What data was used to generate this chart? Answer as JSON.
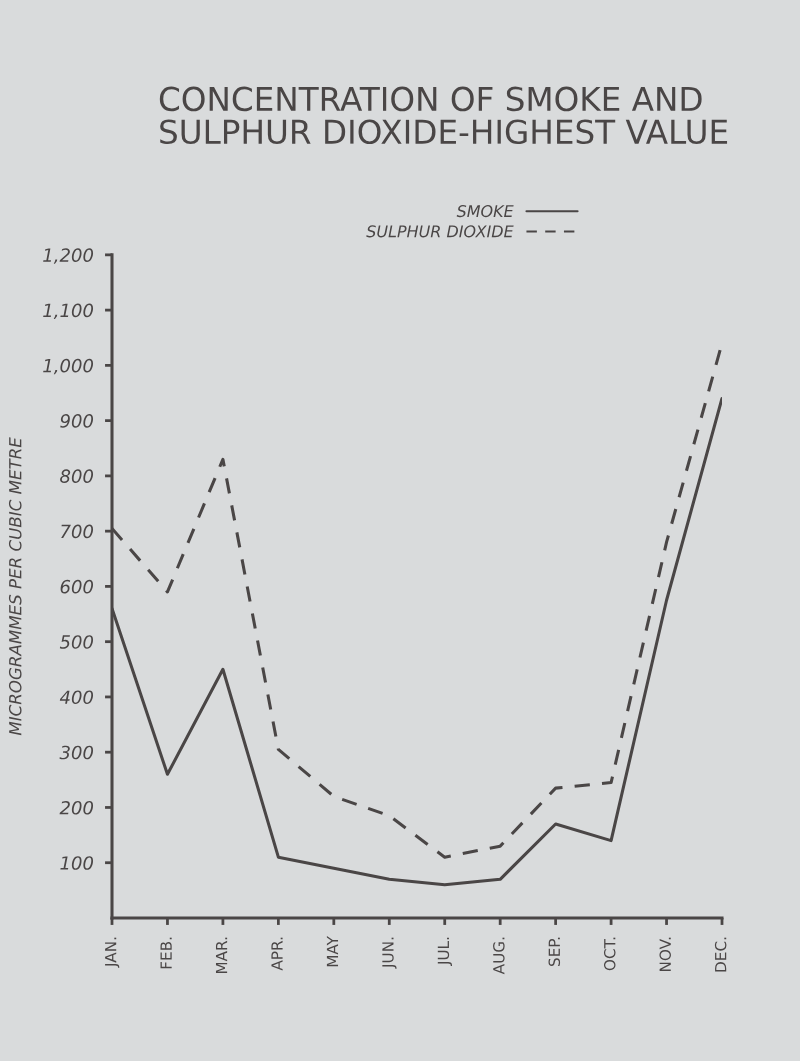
{
  "chart_data": {
    "type": "line",
    "title": "CONCENTRATION OF SMOKE AND\nSULPHUR DIOXIDE-HIGHEST VALUE",
    "ylabel": "MICROGRAMMES PER CUBIC METRE",
    "categories": [
      "JAN.",
      "FEB.",
      "MAR.",
      "APR.",
      "MAY",
      "JUN.",
      "JUL.",
      "AUG.",
      "SEP.",
      "OCT.",
      "NOV.",
      "DEC."
    ],
    "series": [
      {
        "name": "SMOKE",
        "color": "#4a4646",
        "line_style": "solid",
        "values": [
          560,
          260,
          450,
          110,
          90,
          70,
          60,
          70,
          170,
          140,
          575,
          940
        ]
      },
      {
        "name": "SULPHUR DIOXIDE",
        "color": "#4a4646",
        "line_style": "dashed",
        "values": [
          705,
          590,
          830,
          305,
          220,
          185,
          110,
          130,
          235,
          245,
          680,
          1040
        ]
      }
    ],
    "ylim": [
      0,
      1200
    ],
    "yticks": [
      100,
      200,
      300,
      400,
      500,
      600,
      700,
      800,
      900,
      {
        "value": 1000,
        "label": "1,000"
      },
      {
        "value": 1100,
        "label": "1,100"
      },
      {
        "value": 1200,
        "label": "1,200"
      }
    ],
    "legend": "top"
  }
}
